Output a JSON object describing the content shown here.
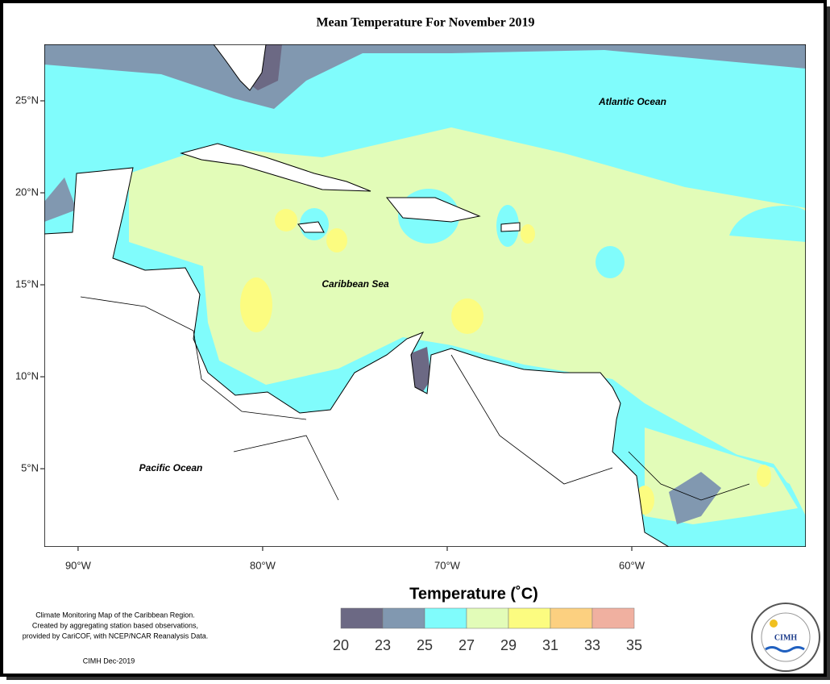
{
  "map": {
    "title": "Mean Temperature For November 2019",
    "lonlim": [
      -91.83,
      -50.57
    ],
    "latlim": [
      0.75,
      28.07
    ],
    "lat_ticks": [
      {
        "value": 25,
        "label": "25°N"
      },
      {
        "value": 20,
        "label": "20°N"
      },
      {
        "value": 15,
        "label": "15°N"
      },
      {
        "value": 10,
        "label": "10°N"
      },
      {
        "value": 5,
        "label": "5°N"
      }
    ],
    "lon_ticks": [
      {
        "value": -90,
        "label": "90°W"
      },
      {
        "value": -80,
        "label": "80°W"
      },
      {
        "value": -70,
        "label": "70°W"
      },
      {
        "value": -60,
        "label": "60°W"
      }
    ],
    "labels": [
      "Atlantic Ocean",
      "Caribbean Sea",
      "Pacific Ocean"
    ],
    "legend": {
      "title": "Temperature (˚C)",
      "ticks": [
        20,
        23,
        25,
        27,
        29,
        31,
        33,
        35
      ],
      "colors": [
        "#6c6984",
        "#8198b0",
        "#80fcfc",
        "#e2fcb8",
        "#fcfc80",
        "#fcd080",
        "#f0b0a0"
      ]
    },
    "note": [
      "Climate Monitoring Map of the Caribbean Region.",
      "Created by aggregating station based observations,",
      "provided by CariCOF, with NCEP/NCAR Reanalysis Data."
    ],
    "credit": "CIMH Dec-2019",
    "logo": "CIMH"
  }
}
